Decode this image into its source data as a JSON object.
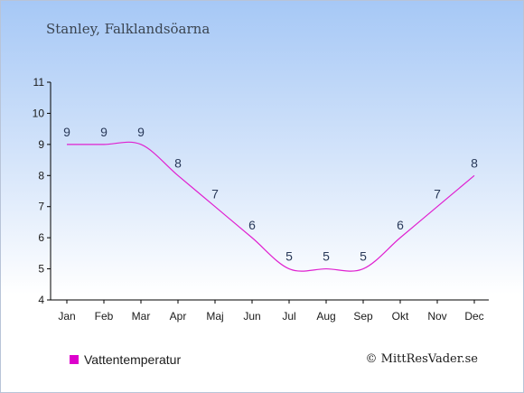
{
  "title": "Stanley, Falklandsöarna",
  "chart_data": {
    "type": "line",
    "categories": [
      "Jan",
      "Feb",
      "Mar",
      "Apr",
      "Maj",
      "Jun",
      "Jul",
      "Aug",
      "Sep",
      "Okt",
      "Nov",
      "Dec"
    ],
    "series": [
      {
        "name": "Vattentemperatur",
        "values": [
          9,
          9,
          9,
          8,
          7,
          6,
          5,
          5,
          5,
          6,
          7,
          8
        ]
      }
    ],
    "ylim": [
      4,
      11
    ],
    "yticks": [
      4,
      5,
      6,
      7,
      8,
      9,
      10,
      11
    ],
    "line_color": "#e020d0",
    "axis_color": "#000000",
    "legend_position": "bottom-left"
  },
  "legend": {
    "label": "Vattentemperatur",
    "color": "#dd00cc"
  },
  "credit": "© MittResVader.se"
}
